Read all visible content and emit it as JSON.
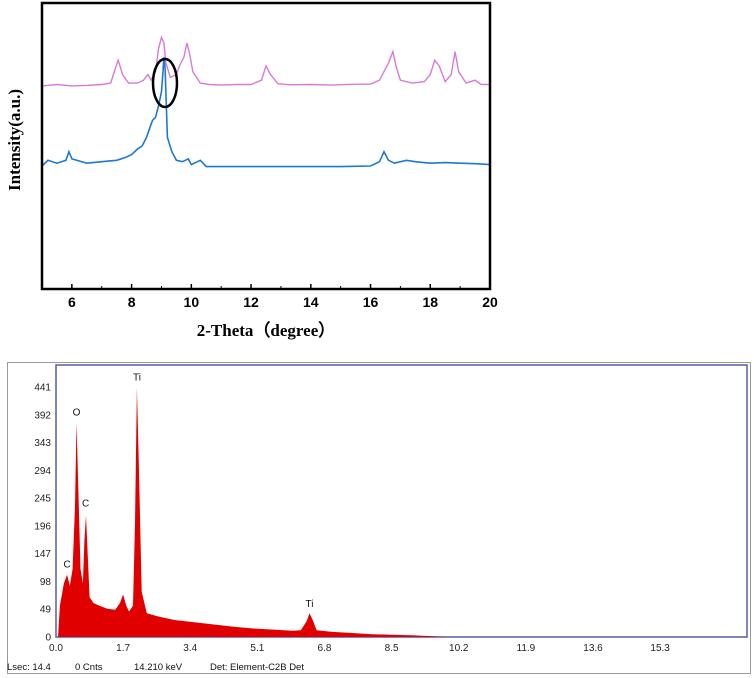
{
  "chart_data": [
    {
      "type": "line",
      "title": "",
      "xlabel": "2-Theta（degree）",
      "ylabel": "Intensity(a.u.)",
      "xlim": [
        5,
        20
      ],
      "ylim": [
        0,
        100
      ],
      "x_ticks": [
        "6",
        "8",
        "10",
        "12",
        "14",
        "16",
        "18",
        "20"
      ],
      "legend": false,
      "grid": false,
      "annotation": "ellipse around the peak near 2θ = 9.1",
      "series": [
        {
          "color": "#d87ad8",
          "points": [
            [
              5.0,
              71
            ],
            [
              5.5,
              71.5
            ],
            [
              6.0,
              71
            ],
            [
              6.5,
              71.2
            ],
            [
              7.0,
              71.5
            ],
            [
              7.3,
              72
            ],
            [
              7.45,
              77
            ],
            [
              7.55,
              80
            ],
            [
              7.7,
              75
            ],
            [
              7.9,
              72
            ],
            [
              8.2,
              72
            ],
            [
              8.4,
              73
            ],
            [
              8.55,
              75
            ],
            [
              8.65,
              73
            ],
            [
              8.8,
              76
            ],
            [
              8.9,
              84
            ],
            [
              9.0,
              88
            ],
            [
              9.08,
              86
            ],
            [
              9.15,
              79
            ],
            [
              9.3,
              74
            ],
            [
              9.5,
              75
            ],
            [
              9.6,
              78
            ],
            [
              9.75,
              81
            ],
            [
              9.85,
              86
            ],
            [
              9.95,
              82
            ],
            [
              10.05,
              76
            ],
            [
              10.3,
              72
            ],
            [
              10.6,
              71.5
            ],
            [
              11.0,
              71.3
            ],
            [
              11.5,
              71.5
            ],
            [
              12.0,
              71.5
            ],
            [
              12.35,
              73
            ],
            [
              12.5,
              78
            ],
            [
              12.65,
              75
            ],
            [
              12.9,
              71.8
            ],
            [
              13.3,
              71.4
            ],
            [
              14.0,
              71.5
            ],
            [
              14.7,
              71.3
            ],
            [
              15.5,
              71.6
            ],
            [
              16.0,
              71.6
            ],
            [
              16.3,
              73
            ],
            [
              16.45,
              76
            ],
            [
              16.6,
              79
            ],
            [
              16.75,
              83
            ],
            [
              16.85,
              78
            ],
            [
              17.0,
              73
            ],
            [
              17.4,
              72
            ],
            [
              17.8,
              72.5
            ],
            [
              18.0,
              75
            ],
            [
              18.15,
              80
            ],
            [
              18.3,
              78
            ],
            [
              18.5,
              72.5
            ],
            [
              18.7,
              75
            ],
            [
              18.83,
              83
            ],
            [
              18.95,
              76
            ],
            [
              19.2,
              72
            ],
            [
              19.5,
              73
            ],
            [
              19.7,
              71.5
            ],
            [
              20.0,
              71.5
            ]
          ]
        },
        {
          "color": "#1f78d0",
          "points": [
            [
              5.0,
              43
            ],
            [
              5.2,
              45
            ],
            [
              5.5,
              44
            ],
            [
              5.8,
              45
            ],
            [
              5.9,
              48
            ],
            [
              6.0,
              45.5
            ],
            [
              6.5,
              44
            ],
            [
              7.0,
              44.5
            ],
            [
              7.5,
              45
            ],
            [
              7.8,
              46
            ],
            [
              8.0,
              47
            ],
            [
              8.2,
              49
            ],
            [
              8.35,
              50
            ],
            [
              8.5,
              53
            ],
            [
              8.6,
              56
            ],
            [
              8.7,
              59
            ],
            [
              8.8,
              60
            ],
            [
              8.9,
              64
            ],
            [
              9.0,
              69
            ],
            [
              9.05,
              76
            ],
            [
              9.08,
              81
            ],
            [
              9.12,
              77
            ],
            [
              9.2,
              53
            ],
            [
              9.35,
              48
            ],
            [
              9.5,
              45
            ],
            [
              9.7,
              44.5
            ],
            [
              9.9,
              45.5
            ],
            [
              10.0,
              43.5
            ],
            [
              10.3,
              45
            ],
            [
              10.5,
              42.8
            ],
            [
              11.0,
              42.8
            ],
            [
              12.0,
              42.8
            ],
            [
              13.0,
              42.8
            ],
            [
              14.0,
              42.8
            ],
            [
              15.0,
              42.8
            ],
            [
              16.0,
              43
            ],
            [
              16.3,
              44.5
            ],
            [
              16.45,
              48
            ],
            [
              16.6,
              45
            ],
            [
              16.8,
              44
            ],
            [
              17.2,
              45
            ],
            [
              17.5,
              44.5
            ],
            [
              18.0,
              44
            ],
            [
              18.5,
              44.2
            ],
            [
              19.0,
              44
            ],
            [
              19.5,
              43.8
            ],
            [
              20.0,
              43.5
            ]
          ]
        }
      ]
    },
    {
      "type": "area",
      "title": "",
      "xlabel": "",
      "ylabel": "",
      "xlim": [
        0,
        17.5
      ],
      "ylim": [
        0,
        480
      ],
      "x_ticks": [
        "0.0",
        "1.7",
        "3.4",
        "5.1",
        "6.8",
        "8.5",
        "10.2",
        "11.9",
        "13.6",
        "15.3"
      ],
      "y_ticks": [
        "0",
        "49",
        "98",
        "147",
        "196",
        "245",
        "294",
        "343",
        "392",
        "441"
      ],
      "grid": false,
      "legend": false,
      "peak_labels": [
        {
          "text": "C",
          "x": 0.28,
          "y": 112
        },
        {
          "text": "O",
          "x": 0.52,
          "y": 380
        },
        {
          "text": "C",
          "x": 0.75,
          "y": 220
        },
        {
          "text": "Ti",
          "x": 2.05,
          "y": 442
        },
        {
          "text": "Ti",
          "x": 6.42,
          "y": 42
        }
      ],
      "series": [
        {
          "color": "#e00000",
          "points": [
            [
              0.05,
              0
            ],
            [
              0.1,
              55
            ],
            [
              0.2,
              95
            ],
            [
              0.28,
              110
            ],
            [
              0.35,
              90
            ],
            [
              0.42,
              120
            ],
            [
              0.48,
              230
            ],
            [
              0.52,
              378
            ],
            [
              0.57,
              250
            ],
            [
              0.62,
              120
            ],
            [
              0.68,
              95
            ],
            [
              0.72,
              170
            ],
            [
              0.76,
              215
            ],
            [
              0.8,
              150
            ],
            [
              0.85,
              70
            ],
            [
              0.95,
              60
            ],
            [
              1.1,
              55
            ],
            [
              1.3,
              50
            ],
            [
              1.5,
              48
            ],
            [
              1.62,
              60
            ],
            [
              1.7,
              75
            ],
            [
              1.78,
              55
            ],
            [
              1.85,
              45
            ],
            [
              1.95,
              55
            ],
            [
              2.0,
              200
            ],
            [
              2.05,
              440
            ],
            [
              2.1,
              300
            ],
            [
              2.17,
              80
            ],
            [
              2.3,
              42
            ],
            [
              2.6,
              36
            ],
            [
              3.0,
              30
            ],
            [
              3.5,
              26
            ],
            [
              4.0,
              22
            ],
            [
              4.5,
              18
            ],
            [
              5.0,
              15
            ],
            [
              5.5,
              13
            ],
            [
              6.0,
              11
            ],
            [
              6.2,
              12
            ],
            [
              6.35,
              28
            ],
            [
              6.42,
              42
            ],
            [
              6.5,
              30
            ],
            [
              6.6,
              12
            ],
            [
              7.0,
              9
            ],
            [
              7.5,
              7
            ],
            [
              8.0,
              5
            ],
            [
              8.5,
              4
            ],
            [
              9.0,
              3
            ],
            [
              9.5,
              1.5
            ],
            [
              9.9,
              0
            ]
          ]
        }
      ]
    }
  ],
  "eds_footer": {
    "lsec": "Lsec: 14.4",
    "cnts": "0 Cnts",
    "kev": "14.210 keV",
    "det": "Det: Element-C2B Det"
  }
}
